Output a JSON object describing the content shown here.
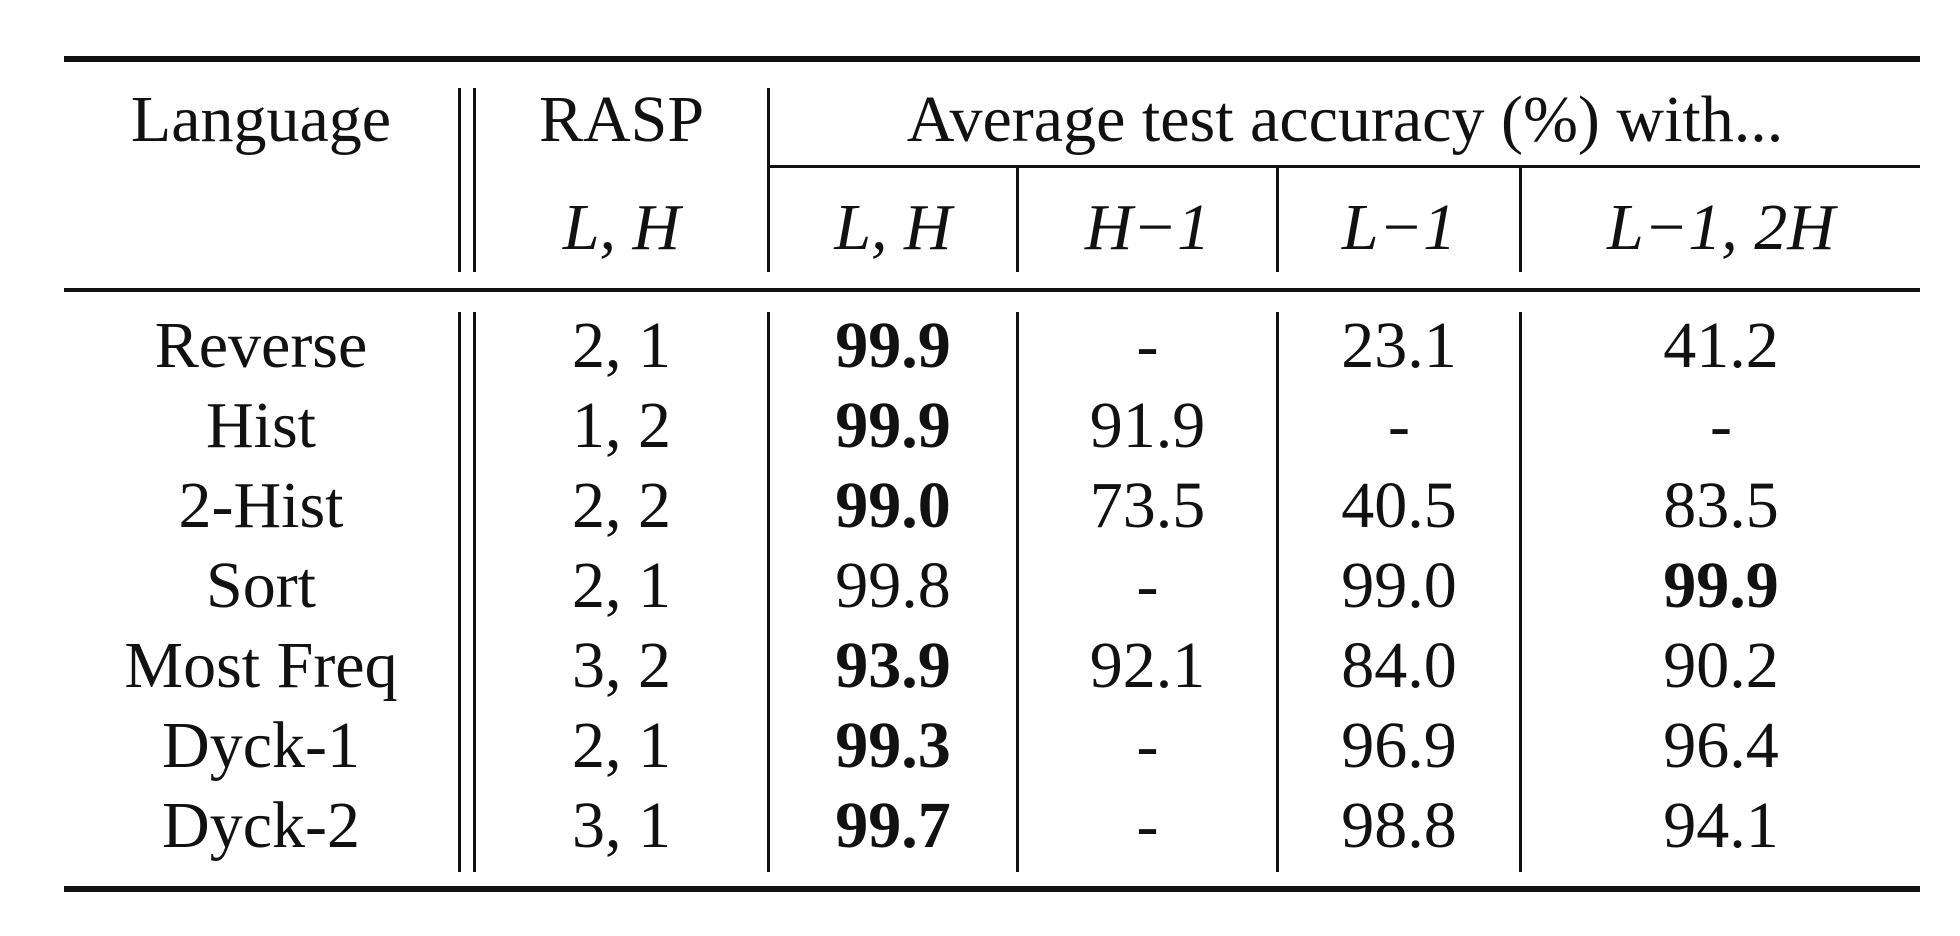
{
  "table": {
    "header": {
      "language": "Language",
      "rasp": "RASP",
      "rasp_sub": "L, H",
      "avg_group": "Average test accuracy (%) with...",
      "sub_columns": [
        "L, H",
        "H−1",
        "L−1",
        "L−1, 2H"
      ]
    },
    "rows": [
      {
        "language": "Reverse",
        "rasp": "2, 1",
        "values": [
          "99.9",
          "-",
          "23.1",
          "41.2"
        ],
        "bold": [
          true,
          false,
          false,
          false
        ]
      },
      {
        "language": "Hist",
        "rasp": "1, 2",
        "values": [
          "99.9",
          "91.9",
          "-",
          "-"
        ],
        "bold": [
          true,
          false,
          false,
          false
        ]
      },
      {
        "language": "2-Hist",
        "rasp": "2, 2",
        "values": [
          "99.0",
          "73.5",
          "40.5",
          "83.5"
        ],
        "bold": [
          true,
          false,
          false,
          false
        ]
      },
      {
        "language": "Sort",
        "rasp": "2, 1",
        "values": [
          "99.8",
          "-",
          "99.0",
          "99.9"
        ],
        "bold": [
          false,
          false,
          false,
          true
        ]
      },
      {
        "language": "Most Freq",
        "rasp": "3, 2",
        "values": [
          "93.9",
          "92.1",
          "84.0",
          "90.2"
        ],
        "bold": [
          true,
          false,
          false,
          false
        ]
      },
      {
        "language": "Dyck-1",
        "rasp": "2, 1",
        "values": [
          "99.3",
          "-",
          "96.9",
          "96.4"
        ],
        "bold": [
          true,
          false,
          false,
          false
        ]
      },
      {
        "language": "Dyck-2",
        "rasp": "3, 1",
        "values": [
          "99.7",
          "-",
          "98.8",
          "94.1"
        ],
        "bold": [
          true,
          false,
          false,
          false
        ]
      }
    ]
  }
}
